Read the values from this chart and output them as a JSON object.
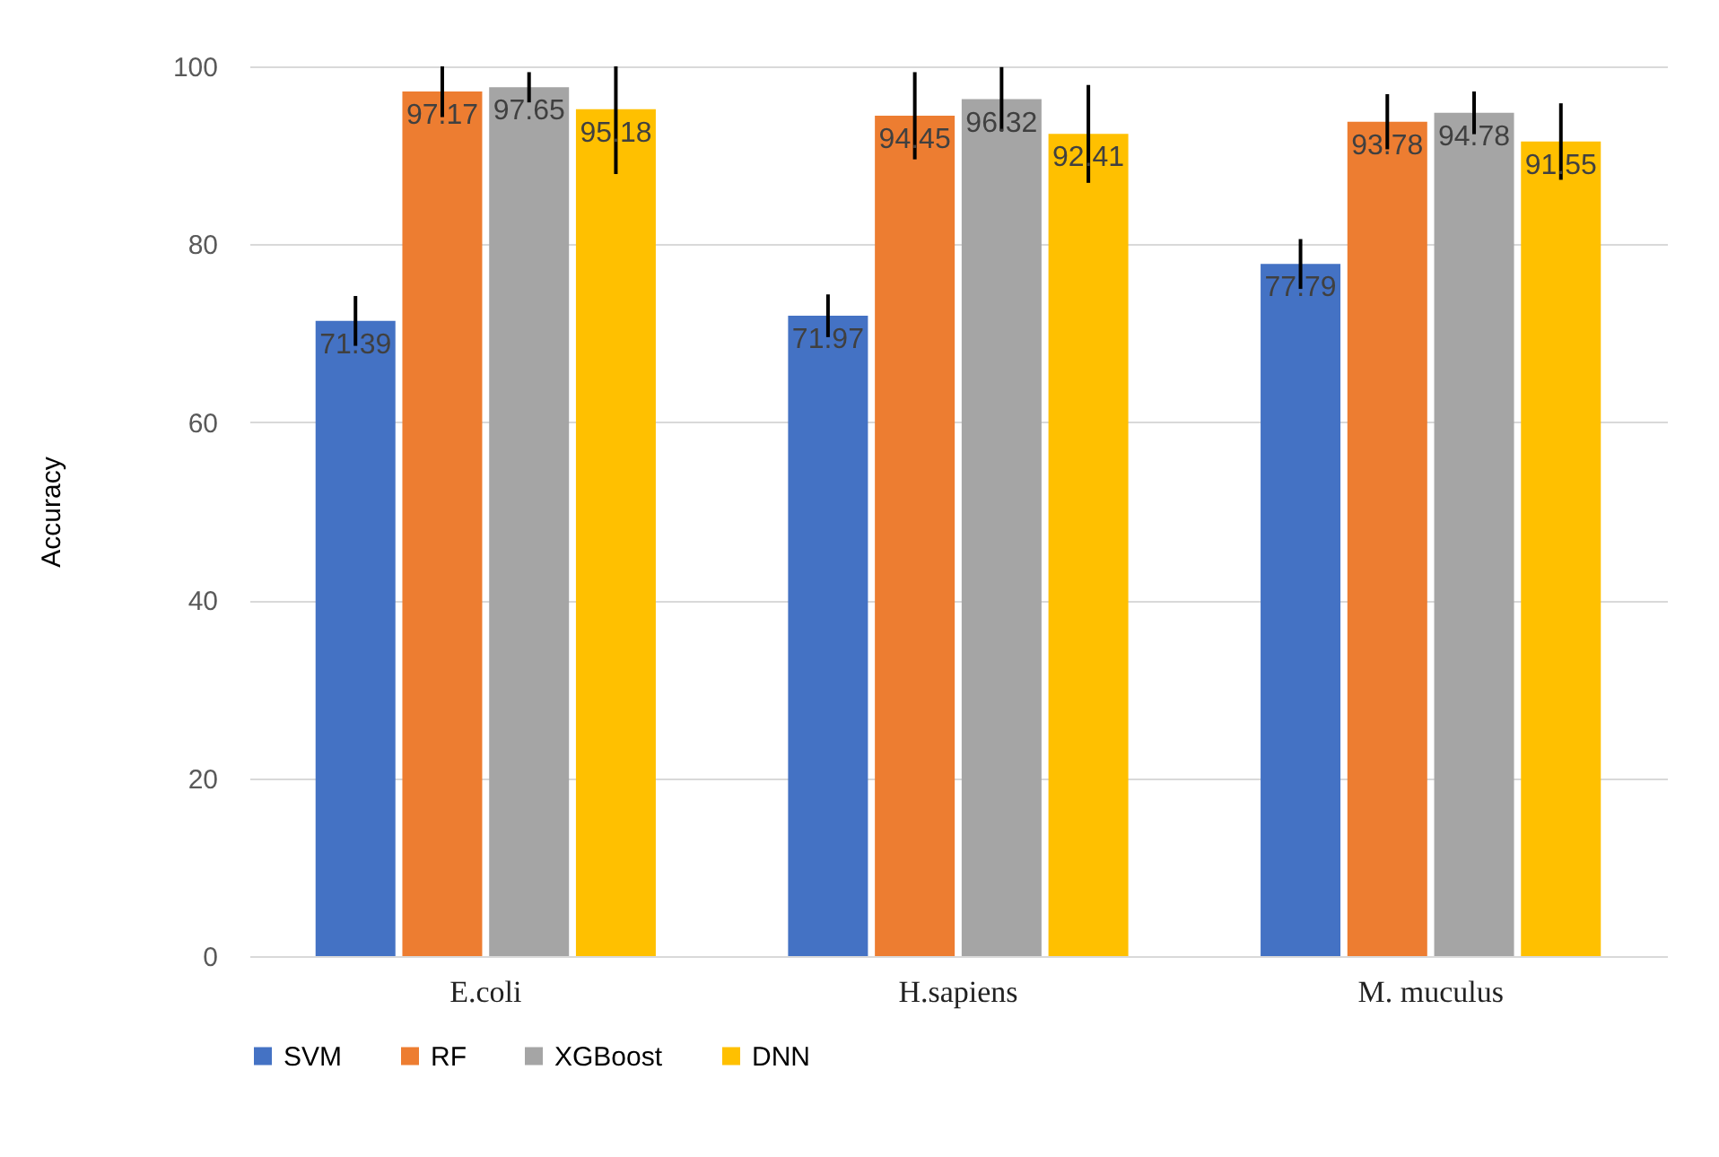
{
  "chart_data": {
    "type": "bar",
    "ylabel": "Accuracy",
    "categories": [
      "E.coli",
      "H.sapiens",
      "M. muculus"
    ],
    "series": [
      {
        "name": "SVM",
        "color": "#4472c4",
        "values": [
          71.39,
          71.97,
          77.79
        ],
        "errors": [
          2.8,
          2.4,
          2.8
        ]
      },
      {
        "name": "RF",
        "color": "#ed7d31",
        "values": [
          97.17,
          94.45,
          93.78
        ],
        "errors": [
          [
            94.3,
            100
          ],
          4.9,
          3.1
        ]
      },
      {
        "name": "XGBoost",
        "color": "#a5a5a5",
        "values": [
          97.65,
          96.32,
          94.78
        ],
        "errors": [
          1.7,
          3.6,
          2.4
        ]
      },
      {
        "name": "DNN",
        "color": "#ffc000",
        "values": [
          95.18,
          92.41,
          91.55
        ],
        "errors": [
          [
            87.9,
            100
          ],
          5.5,
          4.3
        ]
      }
    ],
    "ylim": [
      0,
      100
    ],
    "yticks": [
      0,
      20,
      40,
      60,
      80,
      100
    ],
    "grid": "y",
    "legend": "bottom",
    "data_labels": true
  }
}
